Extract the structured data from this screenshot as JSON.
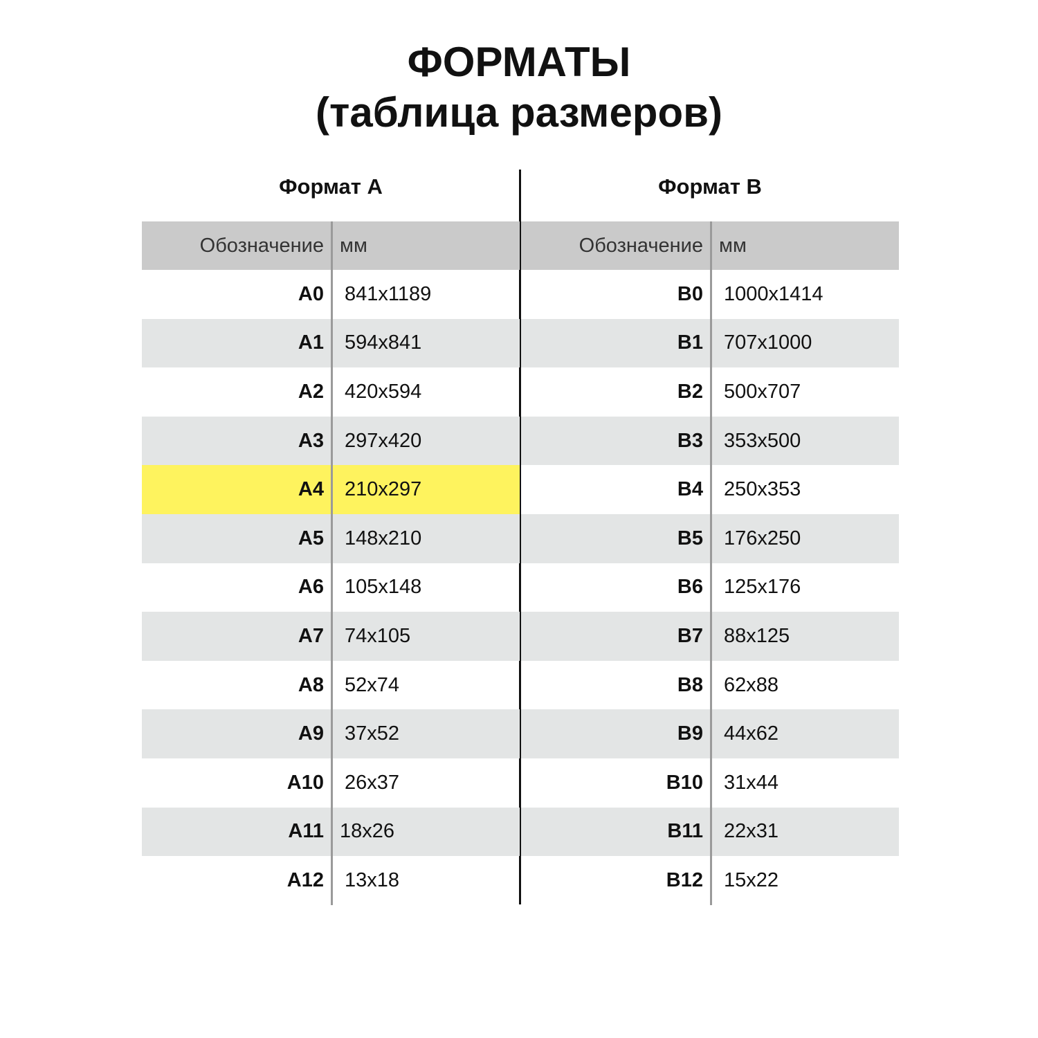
{
  "title": {
    "line1": "ФОРМАТЫ",
    "line2": "(таблица размеров)"
  },
  "columns": {
    "designation": "Обозначение",
    "mm": "мм"
  },
  "highlight_color": "#fef35e",
  "format_a": {
    "heading": "Формат А",
    "highlighted": "A4",
    "rows": [
      {
        "name": "A0",
        "mm": "841x1189"
      },
      {
        "name": "A1",
        "mm": "594x841"
      },
      {
        "name": "A2",
        "mm": "420x594"
      },
      {
        "name": "A3",
        "mm": "297x420"
      },
      {
        "name": "A4",
        "mm": "210x297"
      },
      {
        "name": "A5",
        "mm": "148x210"
      },
      {
        "name": "A6",
        "mm": "105x148"
      },
      {
        "name": "A7",
        "mm": "74x105"
      },
      {
        "name": "A8",
        "mm": "52x74"
      },
      {
        "name": "A9",
        "mm": "37x52"
      },
      {
        "name": "A10",
        "mm": "26x37"
      },
      {
        "name": "A11",
        "mm": "18x26"
      },
      {
        "name": "A12",
        "mm": "13x18"
      }
    ]
  },
  "format_b": {
    "heading": "Формат В",
    "rows": [
      {
        "name": "B0",
        "mm": "1000x1414"
      },
      {
        "name": "B1",
        "mm": "707x1000"
      },
      {
        "name": "B2",
        "mm": "500x707"
      },
      {
        "name": "B3",
        "mm": "353x500"
      },
      {
        "name": "B4",
        "mm": "250x353"
      },
      {
        "name": "B5",
        "mm": "176x250"
      },
      {
        "name": "B6",
        "mm": "125x176"
      },
      {
        "name": "B7",
        "mm": "88x125"
      },
      {
        "name": "B8",
        "mm": "62x88"
      },
      {
        "name": "B9",
        "mm": "44x62"
      },
      {
        "name": "B10",
        "mm": "31x44"
      },
      {
        "name": "B11",
        "mm": "22x31"
      },
      {
        "name": "B12",
        "mm": "15x22"
      }
    ]
  }
}
